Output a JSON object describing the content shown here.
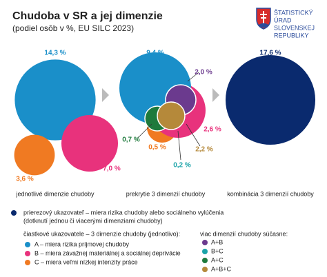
{
  "header": {
    "title": "Chudoba v SR a jej dimenzie",
    "subtitle": "(podiel osôb v %, EU SILC 2023)"
  },
  "logo": {
    "lines": [
      "ŠTATISTICKÝ",
      "ÚRAD",
      "SLOVENSKEJ",
      "REPUBLIKY"
    ]
  },
  "panels": [
    {
      "caption": "jednotlivé dimenzie chudoby",
      "circles": [
        {
          "value": 14.3,
          "label": "14,3 %",
          "color": "#1a8fc9"
        },
        {
          "value": 3.6,
          "label": "3,6 %",
          "color": "#f07a22"
        },
        {
          "value": 7.0,
          "label": "7,0 %",
          "color": "#e8327c"
        }
      ]
    },
    {
      "caption": "prekrytie 3 dimenzií chudoby",
      "regions": [
        {
          "value": 9.4,
          "label": "9,4 %",
          "color": "#1a8fc9"
        },
        {
          "value": 2.0,
          "label": "2,0 %",
          "color": "#6b3a8e"
        },
        {
          "value": 2.6,
          "label": "2,6 %",
          "color": "#e8327c"
        },
        {
          "value": 0.7,
          "label": "0,7 %",
          "color": "#1e7a3c"
        },
        {
          "value": 0.5,
          "label": "0,5 %",
          "color": "#f07a22"
        },
        {
          "value": 2.2,
          "label": "2,2 %",
          "color": "#b5893a"
        },
        {
          "value": 0.2,
          "label": "0,2 %",
          "color": "#1aa3a8"
        }
      ]
    },
    {
      "caption": "kombinácia 3 dimenzií chudoby",
      "circles": [
        {
          "value": 17.6,
          "label": "17,6 %",
          "color": "#0a2a6e"
        }
      ]
    }
  ],
  "legend": {
    "main": {
      "lines": [
        "prierezový ukazovateľ – miera rizika chudoby alebo sociálneho vylúčenia",
        "(dotknutí jednou či viacerými dimenziami chudoby)"
      ],
      "color": "#0a2a6e"
    },
    "partial_title": "čiastkové ukazovatele – 3 dimenzie chudoby (jednotlivo):",
    "partial": [
      {
        "label": "A – miera rizika príjmovej chudoby",
        "color": "#1a8fc9"
      },
      {
        "label": "B – miera závažnej materiálnej a sociálnej deprivácie",
        "color": "#e8327c"
      },
      {
        "label": "C – miera veľmi nízkej intenzity práce",
        "color": "#f07a22"
      }
    ],
    "combined_title": "viac dimenzií chudoby súčasne:",
    "combined": [
      {
        "label": "A+B",
        "color": "#6b3a8e"
      },
      {
        "label": "B+C",
        "color": "#1aa3a8"
      },
      {
        "label": "A+C",
        "color": "#1e7a3c"
      },
      {
        "label": "A+B+C",
        "color": "#b5893a"
      }
    ]
  }
}
